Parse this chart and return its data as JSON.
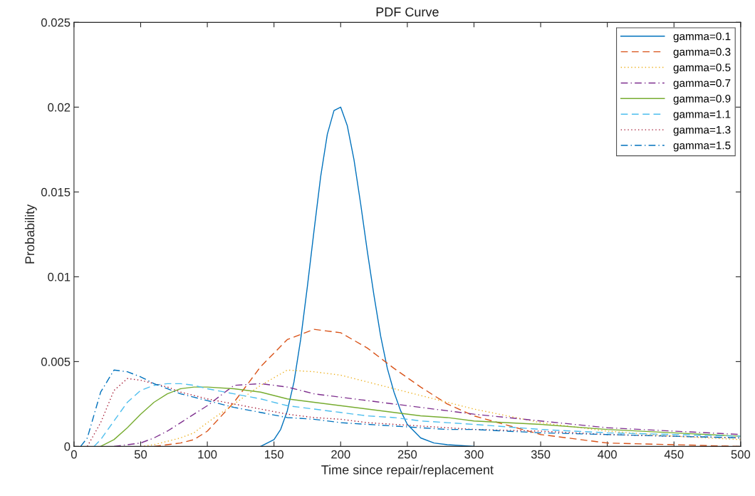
{
  "chart_data": {
    "type": "line",
    "title": "PDF Curve",
    "xlabel": "Time since repair/replacement",
    "ylabel": "Probability",
    "xlim": [
      0,
      500
    ],
    "xticks": [
      0,
      50,
      100,
      150,
      200,
      250,
      300,
      350,
      400,
      450,
      500
    ],
    "ylim": [
      0,
      0.025
    ],
    "yticks": [
      0,
      0.005,
      0.01,
      0.015,
      0.02,
      0.025
    ],
    "grid": false,
    "legend": "top right",
    "marker": "none",
    "series": [
      {
        "name": "gamma=0.1",
        "color": "#0072bd",
        "line_style": "solid",
        "x": [
          140,
          150,
          155,
          160,
          165,
          170,
          175,
          180,
          185,
          190,
          195,
          200,
          205,
          210,
          215,
          220,
          225,
          230,
          235,
          240,
          245,
          250,
          260,
          270,
          280,
          300
        ],
        "values": [
          0,
          0.0004,
          0.001,
          0.0021,
          0.0038,
          0.0063,
          0.0094,
          0.0127,
          0.0159,
          0.0184,
          0.0198,
          0.02,
          0.0189,
          0.0169,
          0.0143,
          0.0115,
          0.0089,
          0.0065,
          0.0046,
          0.0032,
          0.0021,
          0.0013,
          0.0005,
          0.0002,
          0.0001,
          0
        ]
      },
      {
        "name": "gamma=0.3",
        "color": "#d95319",
        "line_style": "dashed",
        "x": [
          60,
          70,
          80,
          90,
          100,
          120,
          140,
          160,
          180,
          200,
          220,
          240,
          260,
          280,
          300,
          350,
          400,
          450,
          500
        ],
        "values": [
          0,
          0.0001,
          0.0002,
          0.0004,
          0.0009,
          0.0026,
          0.0047,
          0.0063,
          0.0069,
          0.0067,
          0.0058,
          0.0046,
          0.0035,
          0.0025,
          0.0018,
          0.0007,
          0.0002,
          0.0001,
          0
        ]
      },
      {
        "name": "gamma=0.5",
        "color": "#edb120",
        "line_style": "dotted",
        "x": [
          50,
          60,
          70,
          80,
          90,
          100,
          120,
          140,
          160,
          180,
          200,
          220,
          240,
          260,
          280,
          300,
          350,
          400,
          450,
          500
        ],
        "values": [
          0,
          0.0001,
          0.0003,
          0.0005,
          0.0008,
          0.0014,
          0.0025,
          0.0036,
          0.0045,
          0.0044,
          0.0042,
          0.0038,
          0.0034,
          0.003,
          0.0026,
          0.0022,
          0.0014,
          0.0009,
          0.0006,
          0.0004
        ]
      },
      {
        "name": "gamma=0.7",
        "color": "#7e2f8e",
        "line_style": "dashdot",
        "x": [
          30,
          40,
          50,
          60,
          70,
          80,
          90,
          100,
          120,
          140,
          160,
          180,
          200,
          220,
          240,
          260,
          280,
          300,
          350,
          400,
          450,
          500
        ],
        "values": [
          0,
          0.0001,
          0.0002,
          0.0005,
          0.0009,
          0.0014,
          0.0019,
          0.0024,
          0.0036,
          0.0037,
          0.0035,
          0.0031,
          0.0029,
          0.0027,
          0.0025,
          0.0023,
          0.0021,
          0.0019,
          0.0015,
          0.0011,
          0.0009,
          0.0007
        ]
      },
      {
        "name": "gamma=0.9",
        "color": "#77ac30",
        "line_style": "solid",
        "x": [
          20,
          30,
          40,
          50,
          60,
          70,
          80,
          90,
          100,
          120,
          140,
          160,
          180,
          200,
          220,
          240,
          260,
          280,
          300,
          350,
          400,
          450,
          500
        ],
        "values": [
          0,
          0.0004,
          0.0011,
          0.0019,
          0.0026,
          0.0031,
          0.0034,
          0.0035,
          0.0035,
          0.0034,
          0.0032,
          0.0028,
          0.0026,
          0.0024,
          0.0022,
          0.002,
          0.0018,
          0.0017,
          0.0015,
          0.0013,
          0.001,
          0.0008,
          0.0006
        ]
      },
      {
        "name": "gamma=1.1",
        "color": "#4dbeee",
        "line_style": "dashed",
        "x": [
          15,
          20,
          30,
          40,
          50,
          60,
          70,
          80,
          90,
          100,
          120,
          140,
          160,
          180,
          200,
          220,
          240,
          260,
          280,
          300,
          350,
          400,
          450,
          500
        ],
        "values": [
          0,
          0.0004,
          0.0015,
          0.0026,
          0.0033,
          0.0036,
          0.0037,
          0.0037,
          0.0036,
          0.0034,
          0.0031,
          0.0028,
          0.0024,
          0.0022,
          0.002,
          0.0018,
          0.0017,
          0.0015,
          0.0014,
          0.0013,
          0.001,
          0.0008,
          0.0007,
          0.0006
        ]
      },
      {
        "name": "gamma=1.3",
        "color": "#a2142f",
        "line_style": "dotted",
        "x": [
          10,
          20,
          30,
          40,
          50,
          60,
          70,
          80,
          90,
          100,
          120,
          140,
          160,
          180,
          200,
          220,
          240,
          260,
          280,
          300,
          350,
          400,
          450,
          500
        ],
        "values": [
          0,
          0.0014,
          0.0033,
          0.004,
          0.0039,
          0.0037,
          0.0035,
          0.0032,
          0.003,
          0.0028,
          0.0025,
          0.0022,
          0.0019,
          0.0017,
          0.0016,
          0.0014,
          0.0013,
          0.0012,
          0.0011,
          0.001,
          0.0009,
          0.0007,
          0.0006,
          0.0005
        ]
      },
      {
        "name": "gamma=1.5",
        "color": "#0072bd",
        "line_style": "dashdot",
        "x": [
          5,
          10,
          20,
          30,
          40,
          50,
          60,
          70,
          80,
          90,
          100,
          120,
          140,
          160,
          180,
          200,
          220,
          240,
          260,
          280,
          300,
          350,
          400,
          450,
          500
        ],
        "values": [
          0,
          0.0005,
          0.0032,
          0.0045,
          0.0044,
          0.0041,
          0.0037,
          0.0034,
          0.0031,
          0.0029,
          0.0027,
          0.0023,
          0.002,
          0.0017,
          0.0016,
          0.0014,
          0.0013,
          0.0012,
          0.0011,
          0.001,
          0.001,
          0.0008,
          0.0007,
          0.0006,
          0.0005
        ]
      }
    ]
  }
}
